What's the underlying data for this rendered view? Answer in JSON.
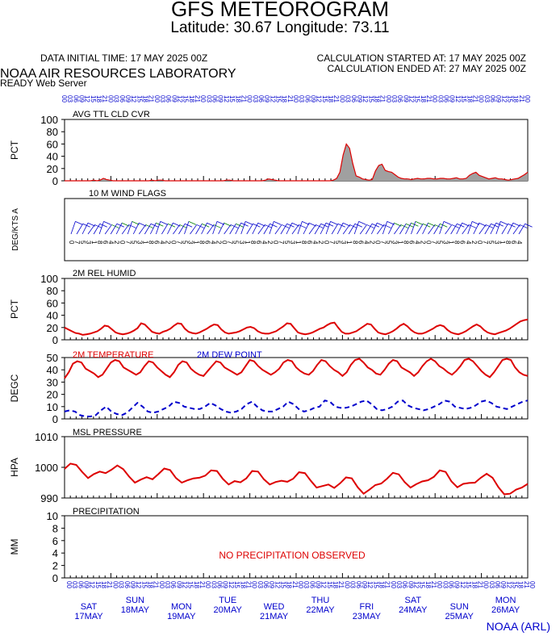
{
  "header": {
    "title": "GFS METEOROGRAM",
    "subtitle": "Latitude: 30.67 Longitude:  73.11",
    "data_initial": "DATA INITIAL TIME: 17 MAY 2025 00Z",
    "calc_started": "CALCULATION STARTED AT: 17 MAY 2025 00Z",
    "calc_ended": "CALCULATION ENDED AT: 27 MAY 2025 00Z",
    "org": "NOAA AIR RESOURCES LABORATORY",
    "server": "READY Web Server"
  },
  "footer": {
    "days": [
      {
        "dow": "SAT",
        "date": "17MAY"
      },
      {
        "dow": "SUN",
        "date": "18MAY"
      },
      {
        "dow": "MON",
        "date": "19MAY"
      },
      {
        "dow": "TUE",
        "date": "20MAY"
      },
      {
        "dow": "WED",
        "date": "21MAY"
      },
      {
        "dow": "THU",
        "date": "22MAY"
      },
      {
        "dow": "FRI",
        "date": "23MAY"
      },
      {
        "dow": "SAT",
        "date": "24MAY"
      },
      {
        "dow": "SUN",
        "date": "25MAY"
      },
      {
        "dow": "MON",
        "date": "26MAY"
      }
    ],
    "credit": "NOAA (ARL)"
  },
  "colors": {
    "red": "#dd0000",
    "blue": "#0000cc",
    "gray": "#a0a0a0",
    "green": "#008000"
  },
  "chart_data": [
    {
      "type": "area",
      "title": "AVG TTL CLD CVR",
      "ylabel": "PCT",
      "ylim": [
        0,
        100
      ],
      "yticks": [
        0,
        20,
        40,
        60,
        80,
        100
      ],
      "x_hours_step": 3,
      "values": [
        0,
        0,
        0,
        0,
        0,
        0,
        0,
        0,
        0,
        1,
        0,
        1,
        4,
        2,
        1,
        0,
        0,
        0,
        0,
        0,
        0,
        0,
        0,
        0,
        0,
        0,
        0,
        1,
        0,
        1,
        1,
        0,
        0,
        0,
        0,
        0,
        0,
        0,
        0,
        0,
        0,
        0,
        0,
        0,
        0,
        0,
        0,
        0,
        0,
        0,
        1,
        1,
        0,
        0,
        0,
        0,
        0,
        0,
        0,
        0,
        0,
        0,
        1,
        3,
        2,
        1,
        0,
        0,
        0,
        0,
        0,
        0,
        0,
        0,
        0,
        0,
        0,
        0,
        0,
        0,
        0,
        0,
        0,
        1,
        4,
        14,
        42,
        60,
        53,
        28,
        8,
        6,
        3,
        2,
        1,
        2,
        16,
        25,
        27,
        17,
        15,
        14,
        10,
        6,
        4,
        3,
        3,
        2,
        3,
        4,
        3,
        3,
        4,
        4,
        3,
        3,
        4,
        4,
        3,
        3,
        4,
        5,
        3,
        3,
        4,
        9,
        12,
        14,
        9,
        7,
        5,
        3,
        4,
        5,
        3,
        3,
        2,
        1,
        2,
        3,
        4,
        7,
        10,
        14
      ]
    },
    {
      "type": "wind_barbs",
      "title": "10 M  WIND FLAGS",
      "ylabel": "DEG/KTS  A"
    },
    {
      "type": "line",
      "title": "2M REL HUMID",
      "ylabel": "PCT",
      "ylim": [
        0,
        100
      ],
      "yticks": [
        0,
        20,
        40,
        60,
        80,
        100
      ],
      "values": [
        20,
        17,
        14,
        11,
        10,
        8,
        9,
        10,
        12,
        14,
        18,
        23,
        22,
        17,
        12,
        10,
        9,
        10,
        12,
        15,
        19,
        27,
        25,
        19,
        13,
        11,
        10,
        13,
        15,
        18,
        23,
        27,
        26,
        18,
        13,
        11,
        10,
        12,
        15,
        18,
        22,
        25,
        24,
        17,
        12,
        10,
        11,
        12,
        14,
        17,
        20,
        21,
        19,
        14,
        11,
        10,
        10,
        12,
        14,
        18,
        22,
        27,
        26,
        19,
        12,
        10,
        9,
        10,
        12,
        15,
        18,
        20,
        24,
        27,
        28,
        20,
        13,
        10,
        10,
        12,
        14,
        18,
        22,
        26,
        25,
        18,
        12,
        10,
        9,
        11,
        14,
        18,
        23,
        26,
        22,
        16,
        12,
        10,
        10,
        12,
        15,
        18,
        22,
        24,
        22,
        16,
        12,
        10,
        9,
        11,
        14,
        18,
        22,
        25,
        22,
        16,
        12,
        10,
        9,
        11,
        13,
        15,
        18,
        22,
        26,
        30,
        32,
        33
      ]
    },
    {
      "type": "line",
      "title": "",
      "ylabel": "DEGC",
      "ylim": [
        0,
        50
      ],
      "yticks": [
        0,
        10,
        20,
        30,
        40,
        50
      ],
      "series": [
        {
          "name": "2M TEMPERATURE",
          "color": "#dd0000",
          "dash": false,
          "values": [
            33,
            38,
            45,
            47,
            46,
            41,
            39,
            37,
            34,
            36,
            41,
            46,
            48,
            47,
            42,
            40,
            38,
            36,
            38,
            43,
            47,
            46,
            42,
            39,
            36,
            34,
            38,
            44,
            47,
            46,
            41,
            38,
            36,
            35,
            39,
            43,
            47,
            46,
            42,
            40,
            38,
            36,
            38,
            43,
            48,
            47,
            43,
            40,
            38,
            36,
            38,
            41,
            46,
            48,
            47,
            42,
            39,
            37,
            36,
            39,
            44,
            48,
            47,
            43,
            40,
            38,
            35,
            38,
            44,
            48,
            49,
            46,
            42,
            40,
            37,
            36,
            40,
            45,
            48,
            47,
            42,
            40,
            38,
            35,
            38,
            43,
            47,
            49,
            47,
            43,
            41,
            38,
            36,
            39,
            43,
            48,
            49,
            47,
            43,
            39,
            36,
            34,
            38,
            43,
            48,
            49,
            48,
            42,
            38,
            36,
            35
          ]
        },
        {
          "name": "2M  DEW POINT",
          "color": "#0000cc",
          "dash": true,
          "values": [
            6,
            7,
            6,
            3,
            2,
            2,
            3,
            7,
            10,
            6,
            4,
            3,
            5,
            9,
            13,
            10,
            6,
            5,
            6,
            8,
            10,
            14,
            13,
            10,
            9,
            8,
            8,
            10,
            13,
            11,
            8,
            6,
            5,
            6,
            8,
            12,
            14,
            10,
            7,
            6,
            6,
            8,
            10,
            14,
            12,
            8,
            6,
            7,
            9,
            10,
            15,
            14,
            10,
            9,
            9,
            10,
            12,
            14,
            15,
            12,
            8,
            7,
            8,
            10,
            14,
            15,
            11,
            9,
            8,
            7,
            8,
            10,
            12,
            15,
            14,
            10,
            9,
            8,
            9,
            11,
            14,
            15,
            13,
            10,
            9,
            8,
            10,
            12,
            14,
            15
          ]
        }
      ]
    },
    {
      "type": "line",
      "title": "MSL PRESSURE",
      "ylabel": "HPA",
      "ylim": [
        990,
        1010
      ],
      "yticks": [
        990,
        1000,
        1010
      ],
      "values": [
        999.5,
        1001.2,
        1000.8,
        998.5,
        996.5,
        997.8,
        998.6,
        998.1,
        999.2,
        1000.6,
        999.4,
        997,
        995,
        996,
        996.8,
        996.1,
        997.8,
        999.6,
        999.1,
        996.5,
        995,
        995.8,
        996.4,
        996.6,
        997.3,
        999,
        998.8,
        996.2,
        994.4,
        995.5,
        995.1,
        996.4,
        998.8,
        998.6,
        996.1,
        994.4,
        995.2,
        995.6,
        995.3,
        996.3,
        998.4,
        998.1,
        995.6,
        993.4,
        993.9,
        994.4,
        993.3,
        994.8,
        996.7,
        996.4,
        993.5,
        991.4,
        992.7,
        994.2,
        994.7,
        996.3,
        998.2,
        997.7,
        995.2,
        993.4,
        994.5,
        995.4,
        995.8,
        996.9,
        999,
        998.5,
        995.4,
        993.5,
        994.6,
        994.9,
        995,
        996.6,
        997.9,
        996.6,
        993.5,
        991.2,
        991.4,
        992.7,
        993.4,
        994.6
      ]
    },
    {
      "type": "line",
      "title": "PRECIPITATION",
      "ylabel": "MM",
      "ylim": [
        0,
        10
      ],
      "yticks": [
        0,
        2,
        4,
        6,
        8,
        10
      ],
      "annotation": "NO PRECIPITATION OBSERVED",
      "values": []
    }
  ]
}
